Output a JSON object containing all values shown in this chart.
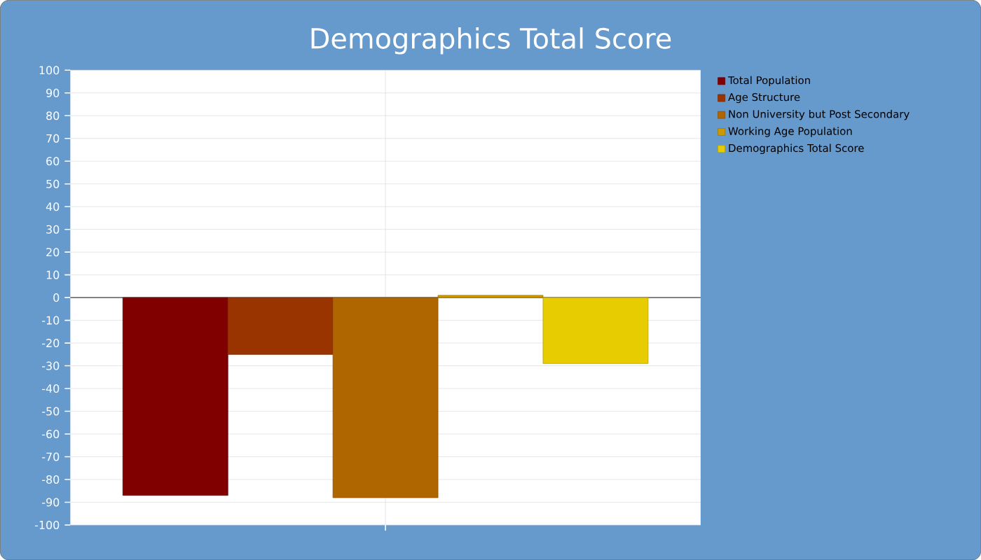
{
  "chart_data": {
    "type": "bar",
    "title": "Demographics Total Score",
    "categories": [
      null
    ],
    "series": [
      {
        "name": "Total Population",
        "color": "#800000",
        "values": [
          -87
        ]
      },
      {
        "name": "Age Structure",
        "color": "#993300",
        "values": [
          -25
        ]
      },
      {
        "name": "Non University but Post Secondary",
        "color": "#B06600",
        "values": [
          -88
        ]
      },
      {
        "name": "Working Age Population",
        "color": "#CC9900",
        "values": [
          1
        ]
      },
      {
        "name": "Demographics Total Score",
        "color": "#E6CC00",
        "values": [
          -29
        ]
      }
    ],
    "ylim": [
      -100,
      100
    ],
    "yticks": [
      -100,
      -90,
      -80,
      -70,
      -60,
      -50,
      -40,
      -30,
      -20,
      -10,
      0,
      10,
      20,
      30,
      40,
      50,
      60,
      70,
      80,
      90,
      100
    ],
    "grid": true,
    "legend": "right",
    "tick_labels": "y"
  }
}
